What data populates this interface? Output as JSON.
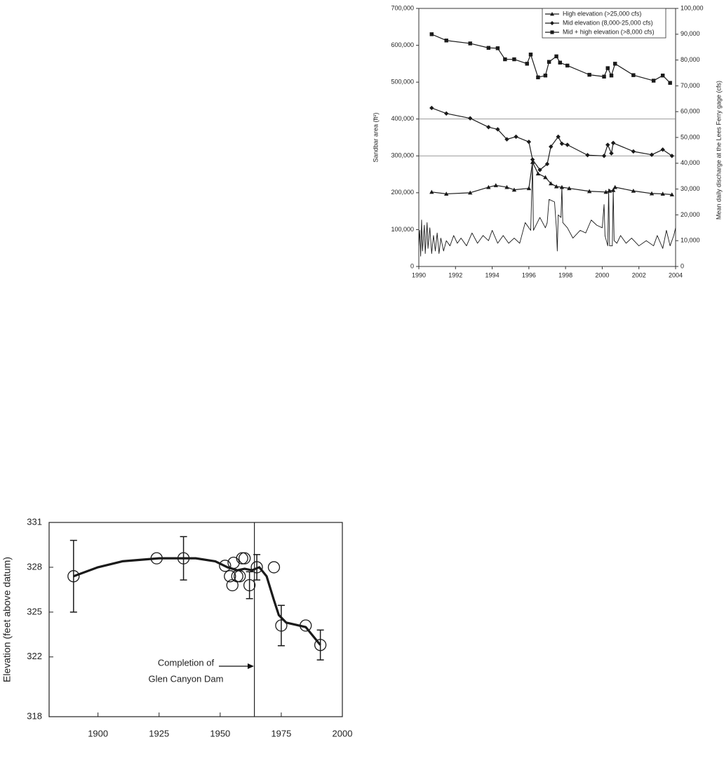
{
  "chart_data": [
    {
      "type": "line",
      "xlim": [
        1990,
        2004
      ],
      "xticks": [
        1990,
        1992,
        1994,
        1996,
        1998,
        2000,
        2002,
        2004
      ],
      "ylim": [
        0,
        700000
      ],
      "yticks": [
        0,
        {
          "value": 100000,
          "label": "100,000"
        },
        {
          "value": 200000,
          "label": "200,000"
        },
        {
          "value": 300000,
          "label": "300,000"
        },
        {
          "value": 400000,
          "label": "400,000"
        },
        {
          "value": 500000,
          "label": "500,000"
        },
        {
          "value": 600000,
          "label": "600,000"
        },
        {
          "value": 700000,
          "label": "700,000"
        }
      ],
      "y2lim": [
        0,
        100000
      ],
      "y2ticks": [
        0,
        {
          "value": 10000,
          "label": "10,000"
        },
        {
          "value": 20000,
          "label": "20,000"
        },
        {
          "value": 30000,
          "label": "30,000"
        },
        {
          "value": 40000,
          "label": "40,000"
        },
        {
          "value": 50000,
          "label": "50,000"
        },
        {
          "value": 60000,
          "label": "60,000"
        },
        {
          "value": 70000,
          "label": "70,000"
        },
        {
          "value": 80000,
          "label": "80,000"
        },
        {
          "value": 90000,
          "label": "90,000"
        },
        {
          "value": 100000,
          "label": "100,000"
        }
      ],
      "ylabel": "Sandbar area (ft²)",
      "y2label": "Mean daily discharge at the Lees Ferry gage (cfs)",
      "hlines": [
        300000,
        400000
      ],
      "legend": "upper right",
      "series": [
        {
          "name": "High elevation (>25,000 cfs)",
          "marker": "triangle",
          "color": "#1a1a1a",
          "x": [
            1990.7,
            1991.5,
            1992.8,
            1993.8,
            1994.2,
            1994.8,
            1995.2,
            1996.0,
            1996.2,
            1996.5,
            1996.9,
            1997.2,
            1997.5,
            1997.8,
            1998.2,
            1999.3,
            2000.2,
            2000.4,
            2000.6,
            2000.7,
            2001.7,
            2002.7,
            2003.3,
            2003.8
          ],
          "values": [
            202000,
            197000,
            200000,
            215000,
            220000,
            215000,
            208000,
            212000,
            283000,
            252000,
            242000,
            225000,
            217000,
            215000,
            212000,
            204000,
            202000,
            205000,
            207000,
            215000,
            205000,
            198000,
            197000,
            195000
          ]
        },
        {
          "name": "Mid elevation (8,000-25,000 cfs)",
          "marker": "diamond",
          "color": "#1a1a1a",
          "x": [
            1990.7,
            1991.5,
            1992.8,
            1993.8,
            1994.3,
            1994.8,
            1995.3,
            1996.0,
            1996.2,
            1996.6,
            1997.0,
            1997.2,
            1997.6,
            1997.8,
            1998.1,
            1999.2,
            2000.1,
            2000.3,
            2000.5,
            2000.6,
            2001.7,
            2002.7,
            2003.3,
            2003.8
          ],
          "values": [
            430000,
            415000,
            402000,
            378000,
            372000,
            345000,
            352000,
            338000,
            290000,
            262000,
            278000,
            325000,
            352000,
            333000,
            330000,
            302000,
            300000,
            330000,
            307000,
            335000,
            312000,
            303000,
            317000,
            300000
          ]
        },
        {
          "name": "Mid + high elevation (>8,000 cfs)",
          "marker": "square",
          "color": "#1a1a1a",
          "x": [
            1990.7,
            1991.5,
            1992.8,
            1993.8,
            1994.3,
            1994.7,
            1995.2,
            1995.9,
            1996.1,
            1996.5,
            1996.9,
            1997.1,
            1997.5,
            1997.7,
            1998.1,
            1999.3,
            2000.1,
            2000.3,
            2000.5,
            2000.7,
            2001.7,
            2002.8,
            2003.3,
            2003.7
          ],
          "values": [
            630000,
            613000,
            605000,
            593000,
            592000,
            562000,
            562000,
            550000,
            575000,
            513000,
            518000,
            555000,
            570000,
            553000,
            545000,
            520000,
            515000,
            538000,
            518000,
            550000,
            519000,
            504000,
            518000,
            498000
          ]
        },
        {
          "axis": "y2",
          "color": "#1a1a1a",
          "x": [
            1990.0,
            1990.05,
            1990.1,
            1990.15,
            1990.2,
            1990.3,
            1990.35,
            1990.45,
            1990.5,
            1990.6,
            1990.7,
            1990.8,
            1990.9,
            1991.0,
            1991.1,
            1991.2,
            1991.35,
            1991.5,
            1991.7,
            1991.9,
            1992.1,
            1992.3,
            1992.6,
            1992.9,
            1993.2,
            1993.5,
            1993.8,
            1994.0,
            1994.3,
            1994.6,
            1994.9,
            1995.2,
            1995.5,
            1995.8,
            1996.1,
            1996.2,
            1996.25,
            1996.6,
            1996.9,
            1997.0,
            1997.1,
            1997.4,
            1997.5,
            1997.55,
            1997.6,
            1997.75,
            1997.8,
            1997.85,
            1998.1,
            1998.4,
            1998.8,
            1999.1,
            1999.4,
            1999.7,
            2000.0,
            2000.1,
            2000.15,
            2000.3,
            2000.35,
            2000.4,
            2000.55,
            2000.6,
            2000.65,
            2000.8,
            2001.0,
            2001.3,
            2001.6,
            2002.0,
            2002.4,
            2002.8,
            2003.0,
            2003.3,
            2003.5,
            2003.7,
            2003.9,
            2004.0
          ],
          "values": [
            8000,
            14000,
            4000,
            18000,
            6000,
            16000,
            5000,
            17000,
            7000,
            15000,
            5000,
            12000,
            6000,
            13000,
            5000,
            11000,
            6000,
            10000,
            8000,
            12000,
            9000,
            11000,
            8000,
            13000,
            9000,
            12000,
            10000,
            14000,
            9000,
            12000,
            9000,
            11000,
            9000,
            17000,
            14000,
            40000,
            14000,
            19000,
            15000,
            17000,
            26000,
            25000,
            15000,
            6000,
            20000,
            19000,
            31000,
            17000,
            15000,
            11000,
            14000,
            13000,
            18000,
            16000,
            15000,
            24000,
            12000,
            8000,
            30000,
            8000,
            8000,
            30000,
            10000,
            9000,
            12000,
            9000,
            11000,
            8000,
            10000,
            8000,
            12000,
            7000,
            14000,
            8000,
            12000,
            15000
          ]
        }
      ]
    },
    {
      "type": "scatter",
      "xlim": [
        1880,
        2000
      ],
      "xticks": [
        1900,
        1925,
        1950,
        1975,
        2000
      ],
      "ylim": [
        318,
        331
      ],
      "yticks": [
        318,
        322,
        325,
        328,
        331
      ],
      "ylabel": "Elevation (feet above datum)",
      "vline": 1964,
      "annotation": [
        "Completion of",
        "Glen Canyon Dam"
      ],
      "series": [
        {
          "marker": "circle",
          "color": "#1a1a1a",
          "x": [
            1890,
            1924,
            1935,
            1952,
            1954,
            1955,
            1955.5,
            1957,
            1958,
            1959,
            1960,
            1962,
            1965,
            1972,
            1975,
            1985,
            1991
          ],
          "values": [
            327.4,
            328.6,
            328.6,
            328.1,
            327.4,
            326.8,
            328.3,
            327.4,
            327.4,
            328.6,
            328.6,
            326.8,
            328.0,
            328.0,
            324.1,
            324.1,
            322.8
          ],
          "errors": [
            2.4,
            null,
            1.45,
            null,
            null,
            null,
            null,
            null,
            null,
            null,
            null,
            0.9,
            0.85,
            null,
            1.35,
            null,
            1.0
          ]
        },
        {
          "style": "line",
          "color": "#1a1a1a",
          "x": [
            1890,
            1900,
            1910,
            1925,
            1940,
            1948,
            1953,
            1957,
            1960,
            1963,
            1966,
            1969,
            1972,
            1974,
            1977,
            1985,
            1991
          ],
          "values": [
            327.4,
            328.0,
            328.4,
            328.6,
            328.6,
            328.4,
            328.0,
            327.8,
            327.9,
            327.8,
            328.0,
            327.4,
            325.8,
            324.8,
            324.3,
            324.0,
            322.8
          ]
        }
      ]
    }
  ]
}
